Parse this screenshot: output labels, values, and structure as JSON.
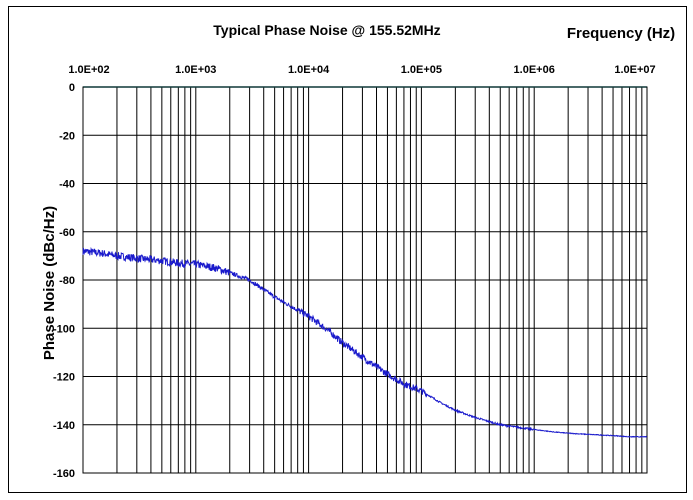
{
  "chart_data": {
    "type": "line",
    "title": "Typical Phase Noise @ 155.52MHz",
    "xlabel": "Frequency (Hz)",
    "ylabel": "Phase Noise    (dBc/Hz)",
    "x_scale": "log",
    "xlim": [
      100,
      10000000
    ],
    "ylim": [
      -160,
      0
    ],
    "x_tick_labels": [
      "1.0E+02",
      "1.0E+03",
      "1.0E+04",
      "1.0E+05",
      "1.0E+06",
      "1.0E+07"
    ],
    "y_tick_labels": [
      "0",
      "-20",
      "-40",
      "-60",
      "-80",
      "-100",
      "-120",
      "-140",
      "-160"
    ],
    "y_ticks": [
      0,
      -20,
      -40,
      -60,
      -80,
      -100,
      -120,
      -140,
      -160
    ],
    "grid": true,
    "legend": "none",
    "series": [
      {
        "color": "#1a1acc",
        "x": [
          100,
          150,
          200,
          300,
          500,
          700,
          1000,
          1500,
          2000,
          3000,
          4000,
          5000,
          7000,
          10000,
          15000,
          20000,
          30000,
          50000,
          70000,
          100000,
          150000,
          200000,
          300000,
          500000,
          700000,
          1000000,
          1500000,
          2000000,
          3000000,
          5000000,
          7000000,
          10000000
        ],
        "y": [
          -68,
          -69,
          -70,
          -71,
          -72,
          -73,
          -73.5,
          -75,
          -77,
          -80,
          -84,
          -87,
          -91,
          -95,
          -101,
          -106,
          -112,
          -119,
          -123,
          -126,
          -131,
          -134,
          -137,
          -140,
          -141,
          -142,
          -143,
          -143.5,
          -144,
          -144.5,
          -145,
          -145
        ]
      }
    ]
  }
}
